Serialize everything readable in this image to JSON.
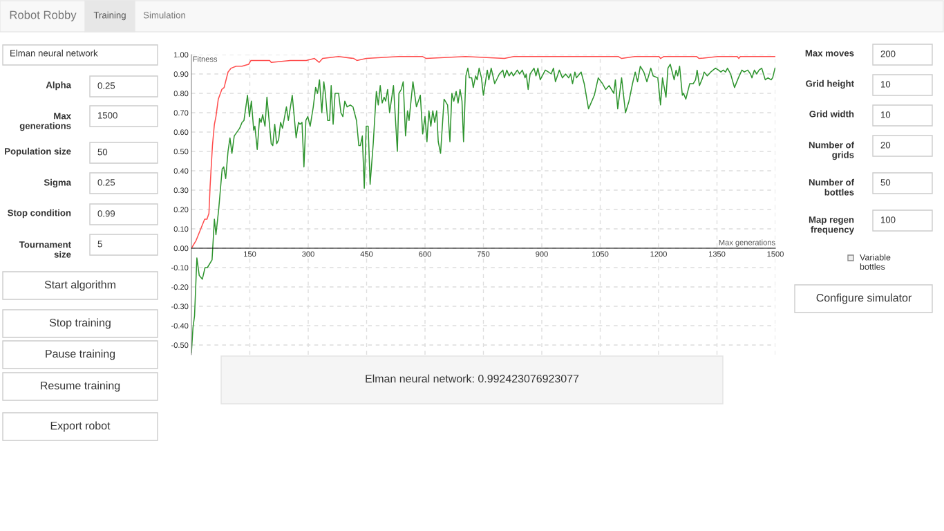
{
  "chart_data": {
    "type": "line",
    "xlabel": "Max generations",
    "ylabel": "Fitness",
    "xlim": [
      0,
      1500
    ],
    "ylim": [
      -0.55,
      1.0
    ],
    "xticks": [
      150,
      300,
      450,
      600,
      750,
      900,
      1050,
      1200,
      1350,
      1500
    ],
    "yticks": [
      {
        "value": -0.5,
        "label": "-0.50"
      },
      {
        "value": -0.4,
        "label": "-0.40"
      },
      {
        "value": -0.3,
        "label": "-0.30"
      },
      {
        "value": -0.2,
        "label": "-0.20"
      },
      {
        "value": -0.1,
        "label": "-0.10"
      },
      {
        "value": 0.0,
        "label": "0.00"
      },
      {
        "value": 0.1,
        "label": "0.10"
      },
      {
        "value": 0.2,
        "label": "0.20"
      },
      {
        "value": 0.3,
        "label": "0.30"
      },
      {
        "value": 0.4,
        "label": "0.40"
      },
      {
        "value": 0.5,
        "label": "0.50"
      },
      {
        "value": 0.6,
        "label": "0.60"
      },
      {
        "value": 0.7,
        "label": "0.70"
      },
      {
        "value": 0.8,
        "label": "0.80"
      },
      {
        "value": 0.9,
        "label": "0.90"
      },
      {
        "value": 1.0,
        "label": "1.00"
      }
    ],
    "grid": true,
    "series": [
      {
        "color": "#ff4d4d",
        "x": [
          0,
          12,
          24,
          34,
          40,
          45,
          48,
          54,
          59,
          63,
          69,
          78,
          84,
          94,
          102,
          115,
          130,
          147,
          153,
          201,
          205,
          254,
          295,
          316,
          328,
          337,
          378,
          417,
          425,
          449,
          532,
          594,
          603,
          704,
          804,
          828,
          1097,
          1105,
          1139,
          1201,
          1205,
          1213,
          1298,
          1304,
          1352,
          1402,
          1406,
          1410,
          1499
        ],
        "values": [
          0.0,
          0.04,
          0.1,
          0.15,
          0.15,
          0.18,
          0.32,
          0.53,
          0.64,
          0.68,
          0.77,
          0.82,
          0.83,
          0.91,
          0.93,
          0.94,
          0.94,
          0.95,
          0.97,
          0.97,
          0.96,
          0.97,
          0.97,
          0.98,
          0.96,
          0.98,
          0.99,
          0.98,
          0.97,
          0.98,
          0.99,
          0.99,
          0.98,
          0.99,
          0.98,
          0.99,
          0.99,
          0.98,
          0.99,
          0.99,
          0.98,
          0.99,
          0.99,
          0.98,
          0.99,
          0.99,
          0.98,
          0.99,
          0.99
        ]
      },
      {
        "color": "#2e942e",
        "x": [
          0,
          4,
          8,
          14,
          20,
          28,
          35,
          41,
          53,
          59,
          63,
          70,
          79,
          83,
          88,
          94,
          99,
          104,
          110,
          124,
          130,
          135,
          144,
          149,
          154,
          160,
          163,
          169,
          175,
          179,
          183,
          189,
          194,
          205,
          209,
          214,
          219,
          224,
          229,
          234,
          244,
          249,
          259,
          269,
          275,
          279,
          284,
          289,
          294,
          299,
          305,
          313,
          319,
          324,
          329,
          335,
          340,
          344,
          350,
          355,
          359,
          364,
          369,
          378,
          384,
          389,
          394,
          400,
          408,
          415,
          424,
          430,
          434,
          439,
          444,
          449,
          454,
          459,
          467,
          475,
          480,
          485,
          490,
          495,
          499,
          504,
          509,
          519,
          529,
          533,
          539,
          544,
          550,
          555,
          559,
          569,
          578,
          588,
          594,
          600,
          605,
          610,
          615,
          620,
          625,
          630,
          634,
          640,
          649,
          658,
          664,
          669,
          674,
          680,
          685,
          690,
          695,
          699,
          705,
          710,
          714,
          720,
          724,
          730,
          734,
          739,
          745,
          750,
          760,
          764,
          770,
          779,
          791,
          800,
          804,
          810,
          816,
          822,
          827,
          837,
          843,
          850,
          857,
          860,
          865,
          870,
          880,
          885,
          890,
          896,
          909,
          917,
          924,
          930,
          935,
          945,
          953,
          961,
          969,
          974,
          979,
          985,
          989,
          1001,
          1009,
          1020,
          1035,
          1045,
          1056,
          1064,
          1073,
          1085,
          1089,
          1095,
          1105,
          1115,
          1124,
          1133,
          1140,
          1146,
          1153,
          1162,
          1170,
          1180,
          1186,
          1198,
          1205,
          1210,
          1219,
          1224,
          1230,
          1240,
          1245,
          1249,
          1254,
          1261,
          1264,
          1270,
          1280,
          1289,
          1295,
          1299,
          1305,
          1313,
          1317,
          1325,
          1334,
          1346,
          1354,
          1360,
          1366,
          1372,
          1377,
          1385,
          1395,
          1405,
          1414,
          1420,
          1429,
          1436,
          1440,
          1446,
          1452,
          1458,
          1465,
          1474,
          1481,
          1489,
          1493,
          1499
        ],
        "values": [
          -0.54,
          -0.41,
          -0.35,
          -0.05,
          -0.14,
          -0.16,
          -0.1,
          -0.1,
          -0.06,
          0.15,
          0.07,
          0.2,
          0.41,
          0.42,
          0.36,
          0.5,
          0.57,
          0.49,
          0.58,
          0.62,
          0.65,
          0.66,
          0.79,
          0.68,
          0.76,
          0.61,
          0.63,
          0.51,
          0.67,
          0.65,
          0.69,
          0.63,
          0.78,
          0.54,
          0.53,
          0.64,
          0.54,
          0.56,
          0.65,
          0.62,
          0.73,
          0.66,
          0.79,
          0.57,
          0.65,
          0.64,
          0.65,
          0.42,
          0.66,
          0.68,
          0.63,
          0.73,
          0.83,
          0.8,
          0.87,
          0.7,
          0.86,
          0.8,
          0.66,
          0.66,
          0.84,
          0.64,
          0.8,
          0.8,
          0.7,
          0.68,
          0.76,
          0.73,
          0.74,
          0.73,
          0.66,
          0.53,
          0.53,
          0.58,
          0.31,
          0.63,
          0.63,
          0.33,
          0.54,
          0.81,
          0.74,
          0.84,
          0.75,
          0.78,
          0.76,
          0.82,
          0.7,
          0.84,
          0.5,
          0.8,
          0.82,
          0.86,
          0.58,
          0.71,
          0.66,
          0.86,
          0.73,
          0.79,
          0.59,
          0.68,
          0.55,
          0.71,
          0.63,
          0.71,
          0.65,
          0.71,
          0.55,
          0.49,
          0.77,
          0.74,
          0.55,
          0.8,
          0.76,
          0.81,
          0.75,
          0.82,
          0.76,
          0.55,
          0.89,
          0.93,
          0.88,
          0.88,
          0.83,
          0.89,
          0.87,
          0.93,
          0.88,
          0.79,
          0.92,
          0.87,
          0.93,
          0.85,
          0.9,
          0.92,
          0.88,
          0.92,
          0.89,
          0.91,
          0.89,
          0.92,
          0.9,
          0.92,
          0.88,
          0.9,
          0.82,
          0.9,
          0.93,
          0.89,
          0.93,
          0.87,
          0.92,
          0.91,
          0.9,
          0.93,
          0.86,
          0.92,
          0.88,
          0.9,
          0.88,
          0.9,
          0.85,
          0.91,
          0.88,
          0.91,
          0.85,
          0.72,
          0.79,
          0.88,
          0.85,
          0.82,
          0.84,
          0.8,
          0.87,
          0.72,
          0.88,
          0.7,
          0.76,
          0.85,
          0.91,
          0.86,
          0.94,
          0.91,
          0.86,
          0.93,
          0.89,
          0.88,
          0.74,
          0.88,
          0.78,
          0.93,
          0.95,
          0.87,
          0.92,
          0.89,
          0.94,
          0.79,
          0.8,
          0.77,
          0.85,
          0.85,
          0.87,
          0.92,
          0.84,
          0.88,
          0.91,
          0.89,
          0.91,
          0.93,
          0.92,
          0.91,
          0.92,
          0.91,
          0.93,
          0.9,
          0.83,
          0.88,
          0.92,
          0.91,
          0.92,
          0.9,
          0.88,
          0.92,
          0.9,
          0.92,
          0.93,
          0.87,
          0.88,
          0.87,
          0.88,
          0.93
        ]
      }
    ],
    "annotations": [
      "Robot Robby",
      "Training",
      "Simulation",
      "Elman neural network",
      "Alpha",
      "0.25",
      "Max generations",
      "1500",
      "Population size",
      "50",
      "Sigma",
      "0.25",
      "Stop condition",
      "0.99",
      "Tournament size",
      "5",
      "Start algorithm",
      "Stop training",
      "Pause training",
      "Resume training",
      "Export robot",
      "Elman neural network: 0.992423076923077",
      "Max moves",
      "200",
      "Grid height",
      "10",
      "Grid width",
      "10",
      "Number of grids",
      "20",
      "Number of bottles",
      "50",
      "Map regen frequency",
      "100",
      "Variable bottles",
      "Configure simulator"
    ]
  }
}
